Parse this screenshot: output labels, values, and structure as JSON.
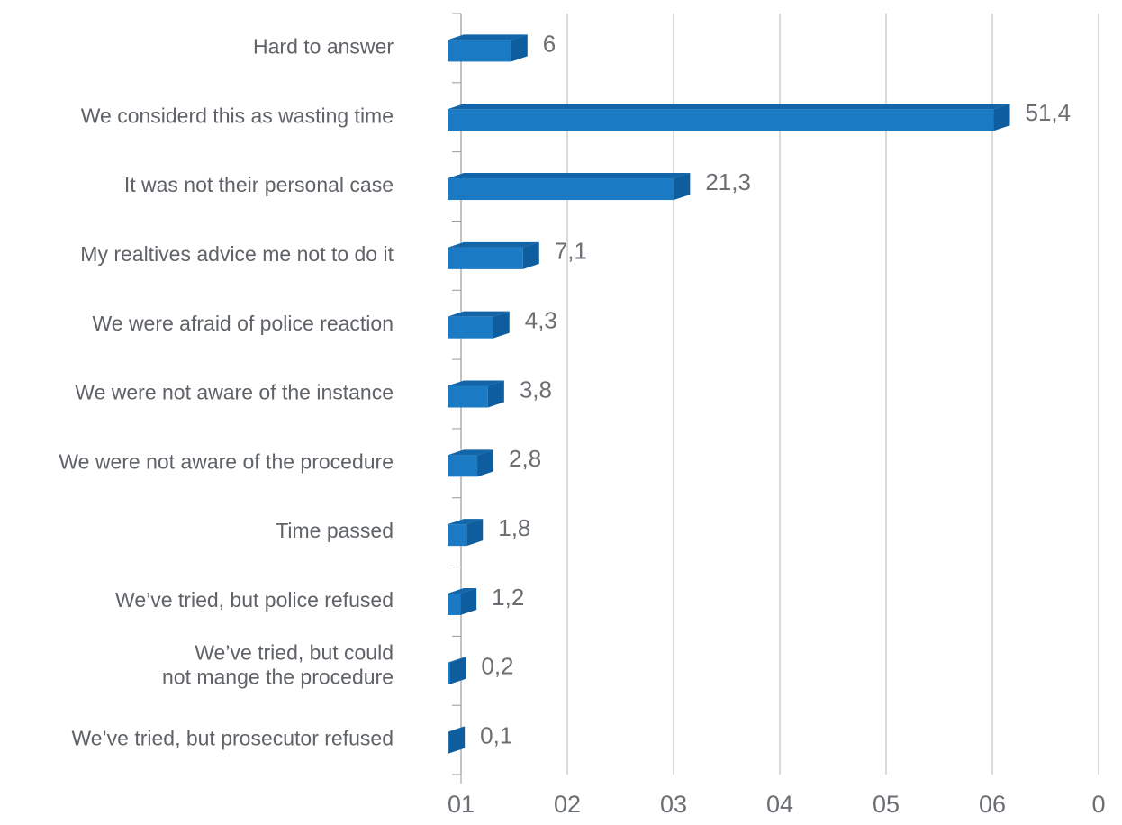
{
  "chart_data": {
    "type": "bar",
    "orientation": "horizontal",
    "categories": [
      "Hard to answer",
      "We considerd this as wasting time",
      "It was not their personal case",
      "My realtives advice me not to do it",
      "We were afraid of police reaction",
      "We were not aware of the instance",
      "We were not aware of the procedure",
      "Time passed",
      "We’ve tried, but police refused",
      "We’ve tried, but could\nnot mange the procedure",
      "We’ve tried, but prosecutor refused"
    ],
    "values": [
      6,
      51.4,
      21.3,
      7.1,
      4.3,
      3.8,
      2.8,
      1.8,
      1.2,
      0.2,
      0.1
    ],
    "value_labels": [
      "6",
      "51,4",
      "21,3",
      "7,1",
      "4,3",
      "3,8",
      "2,8",
      "1,8",
      "1,2",
      "0,2",
      "0,1"
    ],
    "color": "#1a7bc4",
    "xlim": [
      0,
      60
    ],
    "xticks": [
      {
        "value": 0,
        "label": "01"
      },
      {
        "value": 10,
        "label": "02"
      },
      {
        "value": 20,
        "label": "03"
      },
      {
        "value": 30,
        "label": "04"
      },
      {
        "value": 40,
        "label": "05"
      },
      {
        "value": 50,
        "label": "06"
      },
      {
        "value": 60,
        "label": "0"
      }
    ],
    "grid": true
  }
}
